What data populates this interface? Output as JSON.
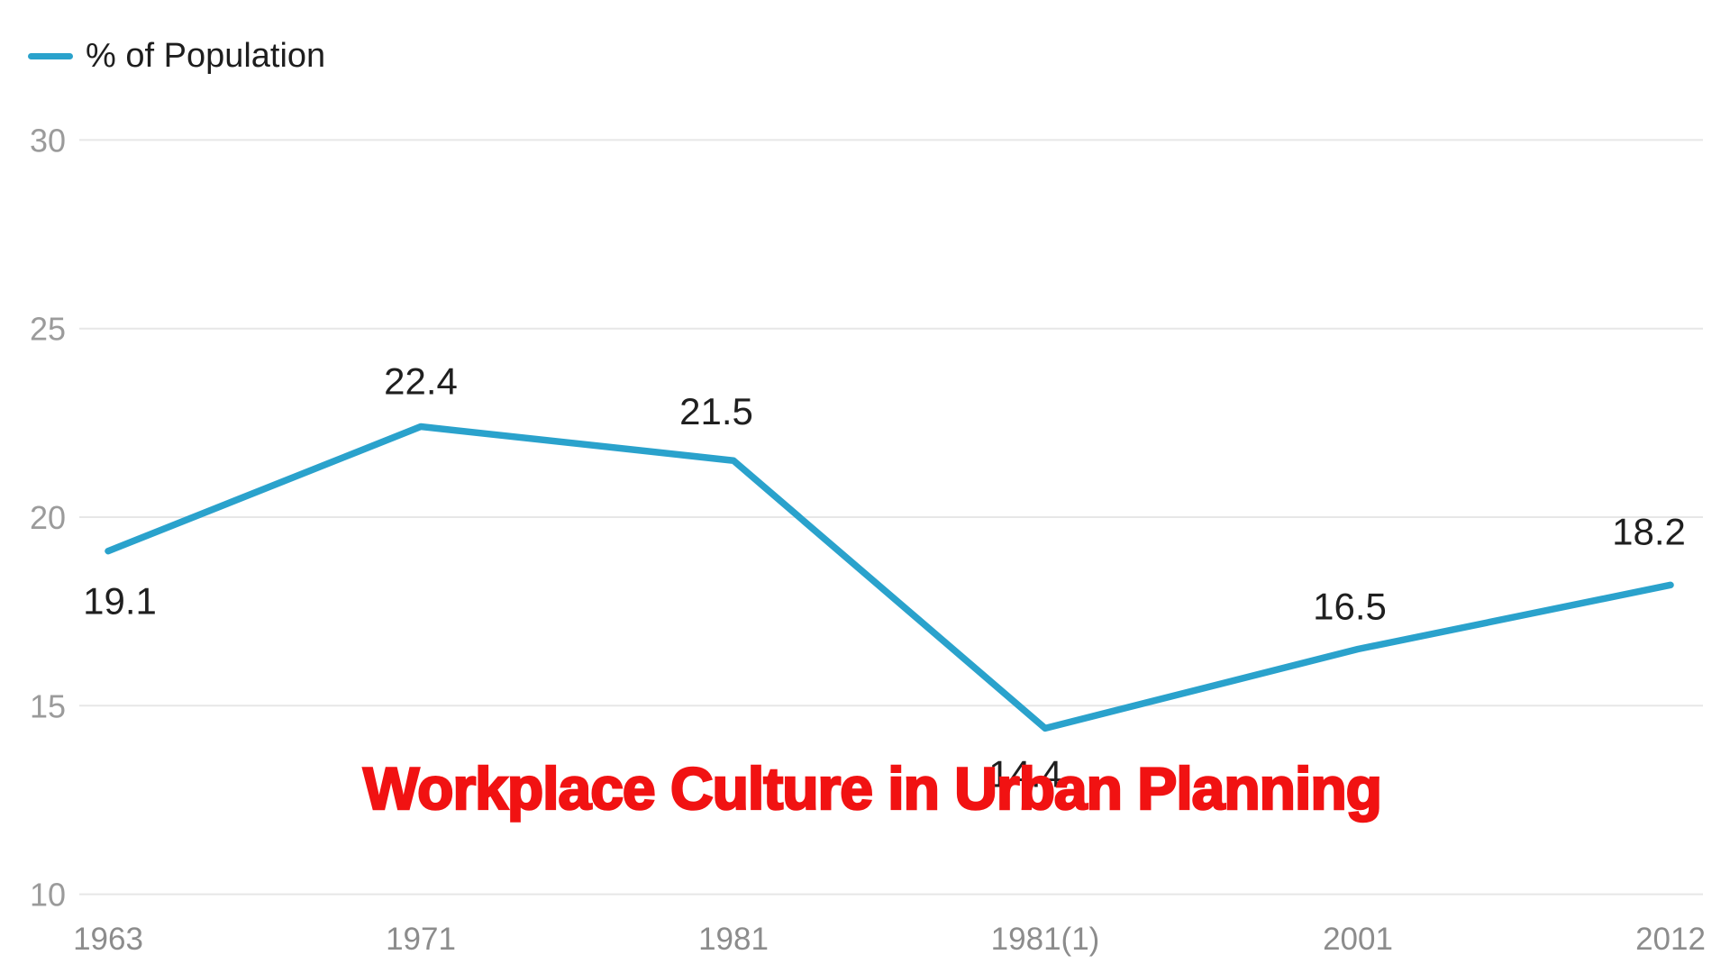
{
  "legend": {
    "label": "% of Population"
  },
  "title": {
    "text": "Workplace Culture in Urban Planning"
  },
  "chart_data": {
    "type": "line",
    "title": "Workplace Culture in Urban Planning",
    "categories": [
      "1963",
      "1971",
      "1981",
      "1981(1)",
      "2001",
      "2012"
    ],
    "series": [
      {
        "name": "% of Population",
        "values": [
          19.1,
          22.4,
          21.5,
          14.4,
          16.5,
          18.2
        ]
      }
    ],
    "data_labels": [
      "19.1",
      "22.4",
      "21.5",
      "14.4",
      "16.5",
      "18.2"
    ],
    "yticks": [
      10,
      15,
      20,
      25,
      30
    ],
    "ylim": [
      10,
      30
    ],
    "xlabel": "",
    "ylabel": "",
    "grid": "horizontal-only",
    "legend_position": "top-left",
    "colors": {
      "line": "#2aa2cc",
      "title": "#f11212",
      "grid": "#e7e7e7",
      "y_tick_label": "#9b9b9b",
      "x_tick_label": "#8c8c8c",
      "data_label": "#1f1f1f",
      "legend_text": "#1e1e1e",
      "background": "#ffffff"
    }
  }
}
